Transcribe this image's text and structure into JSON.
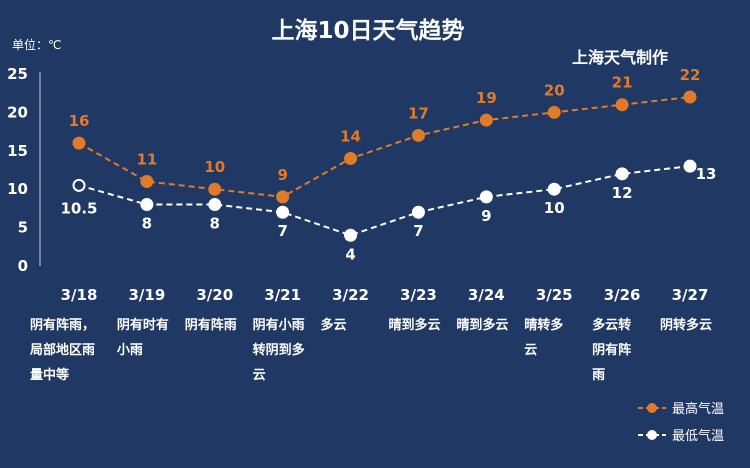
{
  "chart_data": {
    "type": "line",
    "title": "上海10日天气趋势",
    "credit": "上海天气制作",
    "unit_label": "单位：℃",
    "categories": [
      "3/18",
      "3/19",
      "3/20",
      "3/21",
      "3/22",
      "3/23",
      "3/24",
      "3/25",
      "3/26",
      "3/27"
    ],
    "weather": [
      [
        "阴有阵雨，",
        "局部地区雨",
        "量中等"
      ],
      [
        "阴有时有",
        "小雨"
      ],
      [
        "阴有阵雨"
      ],
      [
        "阴有小雨",
        "转阴到多",
        "云"
      ],
      [
        "多云"
      ],
      [
        "晴到多云"
      ],
      [
        "晴到多云"
      ],
      [
        "晴转多",
        "云"
      ],
      [
        "多云转",
        "阴有阵",
        "雨"
      ],
      [
        "阴转多云"
      ]
    ],
    "ylim": [
      0,
      25
    ],
    "yticks": [
      0,
      5,
      10,
      15,
      20,
      25
    ],
    "series": [
      {
        "name": "最高气温",
        "color": "#e07b2a",
        "values": [
          16,
          11,
          10,
          9,
          14,
          17,
          19,
          20,
          21,
          22
        ],
        "labels": [
          "16",
          "11",
          "10",
          "9",
          "14",
          "17",
          "19",
          "20",
          "21",
          "22"
        ]
      },
      {
        "name": "最低气温",
        "color": "#ffffff",
        "values": [
          10.5,
          8,
          8,
          7,
          4,
          7,
          9,
          10,
          12,
          13
        ],
        "labels": [
          "10.5",
          "8",
          "8",
          "7",
          "4",
          "7",
          "9",
          "10",
          "12",
          "13"
        ]
      }
    ],
    "legend_position": "bottom-right"
  }
}
